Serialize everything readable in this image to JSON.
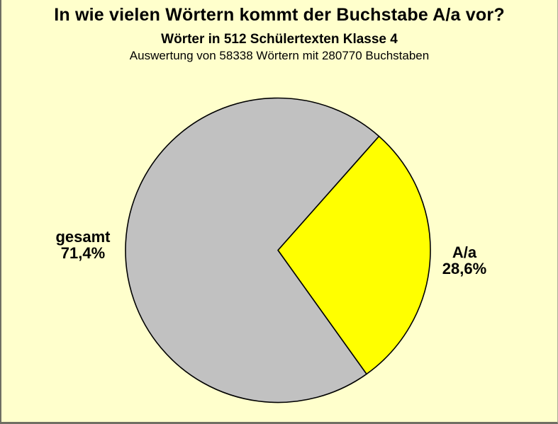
{
  "chart_data": {
    "type": "pie",
    "title": "In wie vielen Wörtern kommt der Buchstabe A/a vor?",
    "subtitle": "Wörter in 512 Schülertexten Klasse 4",
    "note": "Auswertung von 58338 Wörtern mit 280770 Buchstaben",
    "slices": [
      {
        "label": "A/a",
        "value_pct": 28.6,
        "value_label": "28,6%",
        "color": "#ffff00"
      },
      {
        "label": "gesamt",
        "value_pct": 71.4,
        "value_label": "71,4%",
        "color": "#c1c1c1"
      }
    ],
    "start_angle_deg": 48.5,
    "direction": "clockwise",
    "labels_position": "outside",
    "background_color": "#ffffcc",
    "outline_color": "#000000",
    "legend": "none"
  }
}
